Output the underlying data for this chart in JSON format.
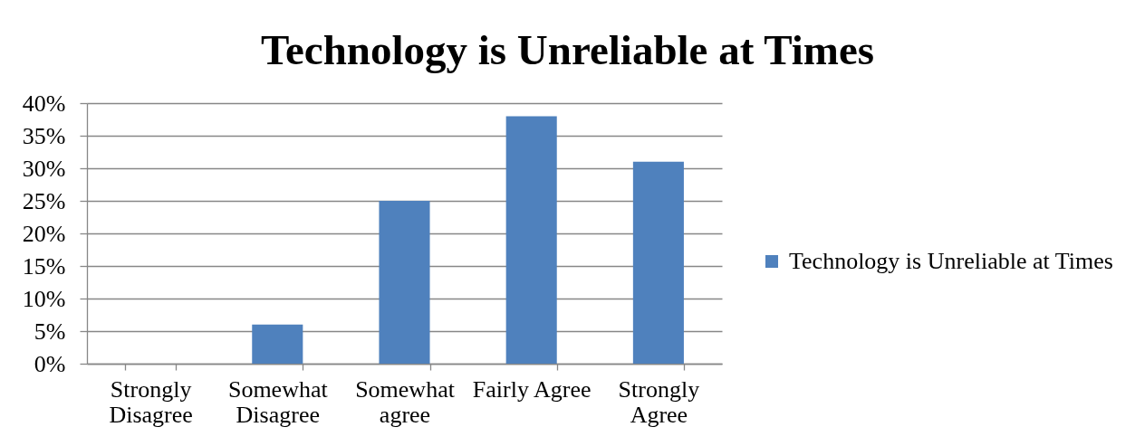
{
  "chart_data": {
    "type": "bar",
    "title": "Technology is Unreliable at Times",
    "categories": [
      "Strongly Disagree",
      "Somewhat Disagree",
      "Somewhat agree",
      "Fairly Agree",
      "Strongly Agree"
    ],
    "series": [
      {
        "name": "Technology is Unreliable at Times",
        "color": "#4f81bd",
        "values": [
          0,
          6,
          25,
          38,
          31
        ]
      }
    ],
    "ylim": [
      0,
      40
    ],
    "yticks": [
      {
        "value": 0,
        "label": "0%"
      },
      {
        "value": 5,
        "label": "5%"
      },
      {
        "value": 10,
        "label": "10%"
      },
      {
        "value": 15,
        "label": "15%"
      },
      {
        "value": 20,
        "label": "20%"
      },
      {
        "value": 25,
        "label": "25%"
      },
      {
        "value": 30,
        "label": "30%"
      },
      {
        "value": 35,
        "label": "35%"
      },
      {
        "value": 40,
        "label": "40%"
      }
    ],
    "grid": "y",
    "legend": "right"
  }
}
